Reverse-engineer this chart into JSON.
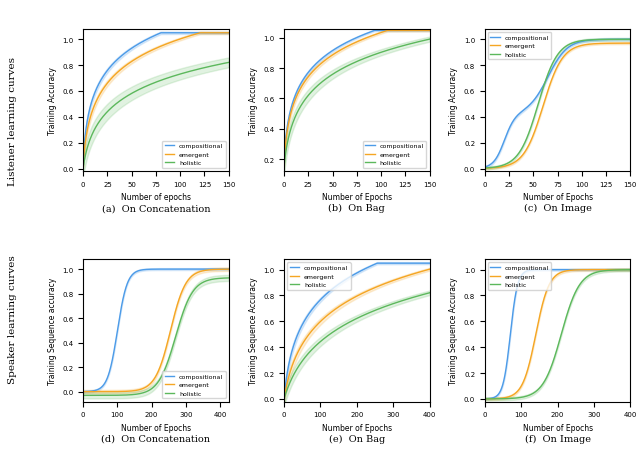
{
  "colors": {
    "compositional": "#4C9BE8",
    "emergent": "#F5A623",
    "holistic": "#5CB85C"
  },
  "alpha_fill": 0.18,
  "row_labels": [
    "Listener learning curves",
    "Speaker learning curves"
  ],
  "subplot_labels": [
    "(a)  On Concatenation",
    "(b)  On Bag",
    "(c)  On Image",
    "(d)  On Concatenation",
    "(e)  On Bag",
    "(f)  On Image"
  ],
  "legend_labels": [
    "compositional",
    "emergent",
    "holistic"
  ]
}
